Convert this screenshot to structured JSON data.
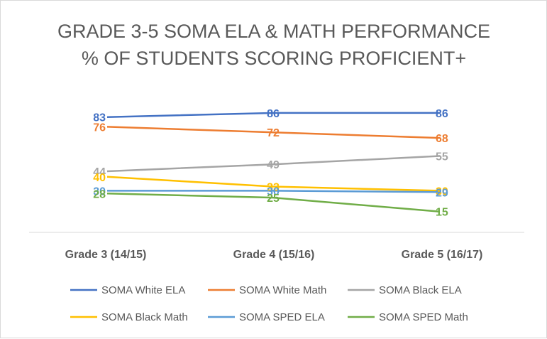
{
  "chart_data": {
    "type": "line",
    "title": "GRADE 3-5 SOMA ELA & MATH PERFORMANCE",
    "subtitle": "% OF STUDENTS SCORING PROFICIENT+",
    "categories": [
      "Grade 3 (14/15)",
      "Grade 4 (15/16)",
      "Grade 5 (16/17)"
    ],
    "ylim": [
      0,
      100
    ],
    "grid": false,
    "legend_position": "bottom",
    "series": [
      {
        "name": "SOMA White ELA",
        "values": [
          83,
          86,
          86
        ],
        "color": "#4472C4"
      },
      {
        "name": "SOMA White Math",
        "values": [
          76,
          72,
          68
        ],
        "color": "#ED7D31"
      },
      {
        "name": "SOMA Black ELA",
        "values": [
          44,
          49,
          55
        ],
        "color": "#A5A5A5"
      },
      {
        "name": "SOMA Black Math",
        "values": [
          40,
          33,
          30
        ],
        "color": "#FFC000"
      },
      {
        "name": "SOMA SPED ELA",
        "values": [
          30,
          30,
          29
        ],
        "color": "#5B9BD5"
      },
      {
        "name": "SOMA SPED Math",
        "values": [
          28,
          25,
          15
        ],
        "color": "#70AD47"
      }
    ]
  }
}
